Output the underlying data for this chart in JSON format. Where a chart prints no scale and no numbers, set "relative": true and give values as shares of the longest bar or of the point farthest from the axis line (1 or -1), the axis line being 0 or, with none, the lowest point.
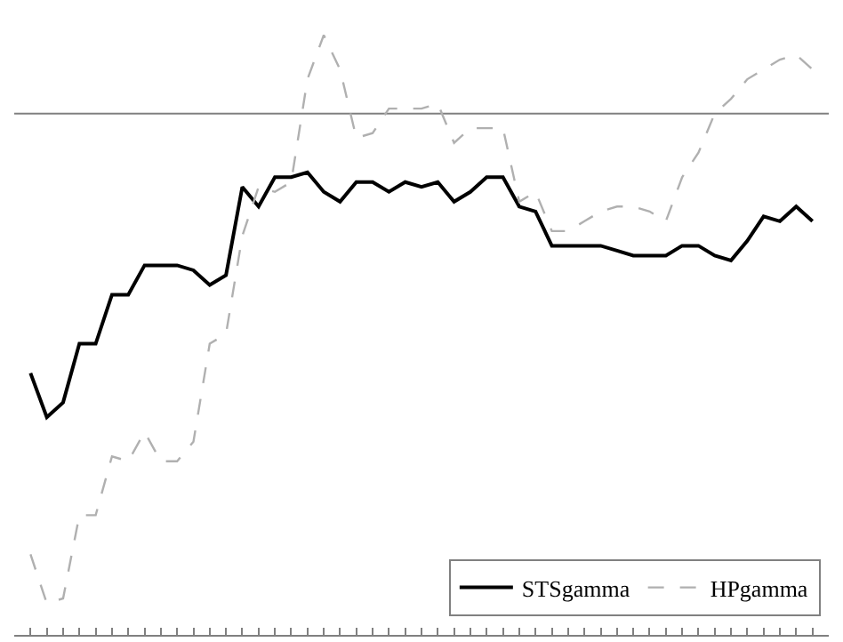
{
  "chart_data": {
    "type": "line",
    "relative": true,
    "categories": [
      null,
      null,
      null,
      null,
      null,
      null,
      null,
      null,
      null,
      null,
      null,
      null,
      null,
      null,
      null,
      null,
      null,
      null,
      null,
      null,
      null,
      null,
      null,
      null,
      null,
      null,
      null,
      null,
      null,
      null,
      null,
      null,
      null,
      null,
      null,
      null,
      null,
      null,
      null,
      null,
      null,
      null,
      null,
      null,
      null,
      null,
      null,
      null,
      null
    ],
    "series": [
      {
        "name": "STSgamma",
        "color": "#000000",
        "line_style": "solid",
        "values": [
          -0.53,
          -0.62,
          -0.59,
          -0.47,
          -0.47,
          -0.37,
          -0.37,
          -0.31,
          -0.31,
          -0.31,
          -0.32,
          -0.35,
          -0.33,
          -0.15,
          -0.19,
          -0.13,
          -0.13,
          -0.12,
          -0.16,
          -0.18,
          -0.14,
          -0.14,
          -0.16,
          -0.14,
          -0.15,
          -0.14,
          -0.18,
          -0.16,
          -0.13,
          -0.13,
          -0.19,
          -0.2,
          -0.27,
          -0.27,
          -0.27,
          -0.27,
          -0.28,
          -0.29,
          -0.29,
          -0.29,
          -0.27,
          -0.27,
          -0.29,
          -0.3,
          -0.26,
          -0.21,
          -0.22,
          -0.19,
          -0.22
        ]
      },
      {
        "name": "HPgamma",
        "color": "#b0b0b0",
        "line_style": "dashed",
        "values": [
          -0.9,
          -1,
          -0.99,
          -0.82,
          -0.82,
          -0.7,
          -0.71,
          -0.65,
          -0.71,
          -0.71,
          -0.67,
          -0.47,
          -0.45,
          -0.25,
          -0.15,
          -0.16,
          -0.14,
          0.07,
          0.16,
          0.09,
          -0.05,
          -0.04,
          0.01,
          0.01,
          0.01,
          0.02,
          -0.06,
          -0.03,
          -0.03,
          -0.03,
          -0.18,
          -0.16,
          -0.24,
          -0.24,
          -0.22,
          -0.2,
          -0.19,
          -0.19,
          -0.2,
          -0.22,
          -0.13,
          -0.08,
          0,
          0.03,
          0.07,
          0.09,
          0.11,
          0.12,
          0.09
        ]
      }
    ],
    "legend": "bottom right",
    "grid": false,
    "marker": "none"
  }
}
